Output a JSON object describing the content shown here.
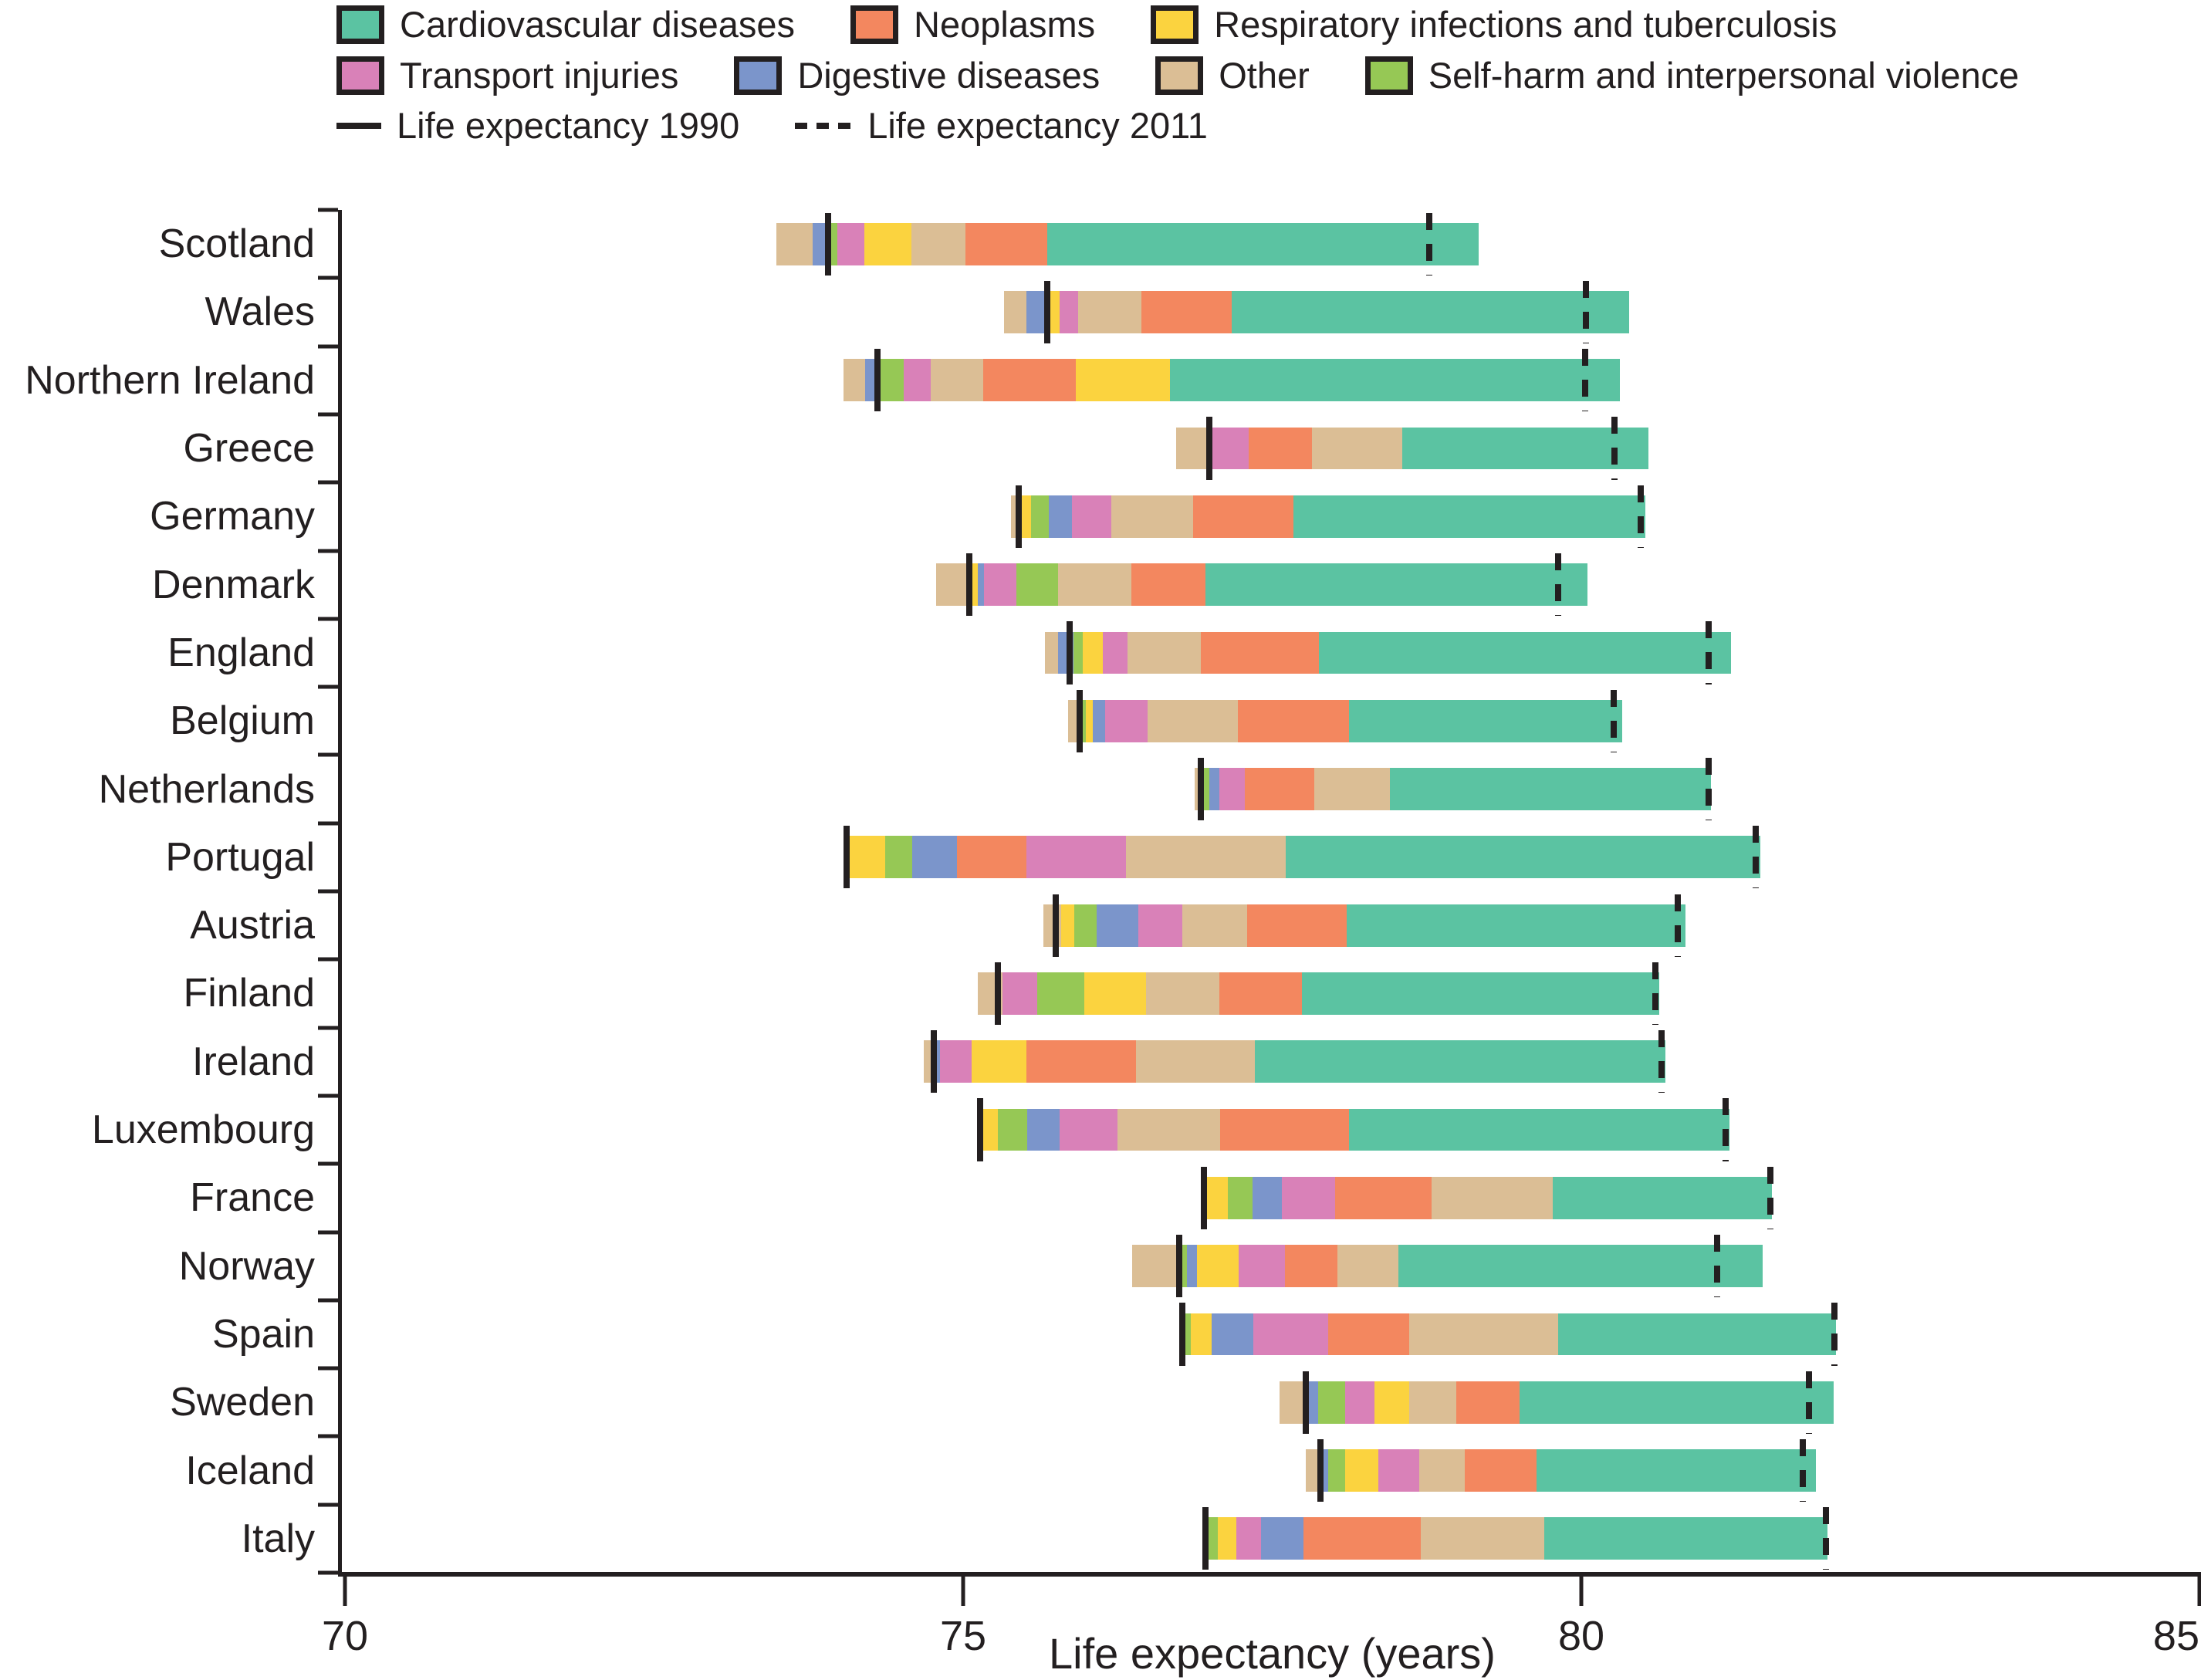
{
  "legend": {
    "categories": [
      {
        "id": "cvd",
        "label": "Cardiovascular diseases",
        "color": "#5BC3A2"
      },
      {
        "id": "neo",
        "label": "Neoplasms",
        "color": "#F3875F"
      },
      {
        "id": "resp",
        "label": "Respiratory infections and tuberculosis",
        "color": "#FBD33F"
      },
      {
        "id": "trans",
        "label": "Transport injuries",
        "color": "#D981B8"
      },
      {
        "id": "dig",
        "label": "Digestive diseases",
        "color": "#7B95CB"
      },
      {
        "id": "other",
        "label": "Other",
        "color": "#DBBE95"
      },
      {
        "id": "self",
        "label": "Self-harm and interpersonal violence",
        "color": "#96C855"
      }
    ],
    "swatch_rows": [
      [
        "cvd",
        "neo",
        "resp"
      ],
      [
        "trans",
        "dig",
        "other",
        "self"
      ]
    ],
    "lines": [
      {
        "id": "le1990",
        "label": "Life expectancy 1990",
        "style": "solid"
      },
      {
        "id": "le2011",
        "label": "Life expectancy 2011",
        "style": "dashed"
      }
    ]
  },
  "axis": {
    "min": 70,
    "max": 85,
    "ticks": [
      70,
      75,
      80,
      85
    ],
    "label": "Life expectancy (years)"
  },
  "colors": {
    "ink": "#231F20",
    "background": "#FFFFFF"
  },
  "chart_data": {
    "type": "bar",
    "orientation": "horizontal-stacked",
    "title": "",
    "xlabel": "Life expectancy (years)",
    "x_min": 70,
    "x_max": 85,
    "grid": false,
    "legend_position": "top",
    "note": "Each bar decomposes the change in life expectancy 1990-2011 by cause; segments are [cause_id, start_value, end_value] in years; solid marker = life expectancy 1990, dashed marker = life expectancy 2011",
    "categories": [
      "Scotland",
      "Wales",
      "Northern Ireland",
      "Greece",
      "Germany",
      "Denmark",
      "England",
      "Belgium",
      "Netherlands",
      "Portugal",
      "Austria",
      "Finland",
      "Ireland",
      "Luxembourg",
      "France",
      "Norway",
      "Spain",
      "Sweden",
      "Iceland",
      "Italy"
    ],
    "rows": [
      {
        "country": "Scotland",
        "le_1990": 73.91,
        "le_2011": 78.77,
        "segments": [
          [
            "other",
            73.49,
            73.78
          ],
          [
            "dig",
            73.78,
            73.93
          ],
          [
            "self",
            73.93,
            73.98
          ],
          [
            "trans",
            73.98,
            74.2
          ],
          [
            "resp",
            74.2,
            74.58
          ],
          [
            "other",
            74.58,
            75.02
          ],
          [
            "neo",
            75.02,
            75.68
          ],
          [
            "cvd",
            75.68,
            79.17
          ]
        ]
      },
      {
        "country": "Wales",
        "le_1990": 75.68,
        "le_2011": 80.04,
        "segments": [
          [
            "other",
            75.33,
            75.51
          ],
          [
            "dig",
            75.51,
            75.66
          ],
          [
            "resp",
            75.66,
            75.78
          ],
          [
            "trans",
            75.78,
            75.93
          ],
          [
            "other",
            75.93,
            76.44
          ],
          [
            "neo",
            76.44,
            77.17
          ],
          [
            "cvd",
            77.17,
            80.39
          ]
        ]
      },
      {
        "country": "Northern Ireland",
        "le_1990": 74.31,
        "le_2011": 80.03,
        "segments": [
          [
            "other",
            74.03,
            74.21
          ],
          [
            "dig",
            74.21,
            74.33
          ],
          [
            "self",
            74.33,
            74.52
          ],
          [
            "trans",
            74.52,
            74.74
          ],
          [
            "other",
            74.74,
            75.16
          ],
          [
            "neo",
            75.16,
            75.91
          ],
          [
            "resp",
            75.91,
            76.67
          ],
          [
            "cvd",
            76.67,
            80.31
          ]
        ]
      },
      {
        "country": "Greece",
        "le_1990": 76.99,
        "le_2011": 80.27,
        "segments": [
          [
            "other",
            76.72,
            77.01
          ],
          [
            "trans",
            77.01,
            77.31
          ],
          [
            "neo",
            77.31,
            77.82
          ],
          [
            "other",
            77.82,
            78.55
          ],
          [
            "cvd",
            78.55,
            80.54
          ]
        ]
      },
      {
        "country": "Germany",
        "le_1990": 75.45,
        "le_2011": 80.48,
        "segments": [
          [
            "other",
            75.39,
            75.47
          ],
          [
            "resp",
            75.47,
            75.55
          ],
          [
            "self",
            75.55,
            75.69
          ],
          [
            "dig",
            75.69,
            75.88
          ],
          [
            "trans",
            75.88,
            76.2
          ],
          [
            "other",
            76.2,
            76.86
          ],
          [
            "neo",
            76.86,
            77.67
          ],
          [
            "cvd",
            77.67,
            80.52
          ]
        ]
      },
      {
        "country": "Denmark",
        "le_1990": 75.05,
        "le_2011": 79.81,
        "segments": [
          [
            "other",
            74.78,
            75.05
          ],
          [
            "resp",
            75.05,
            75.12
          ],
          [
            "dig",
            75.12,
            75.17
          ],
          [
            "trans",
            75.17,
            75.43
          ],
          [
            "self",
            75.43,
            75.77
          ],
          [
            "other",
            75.77,
            76.36
          ],
          [
            "neo",
            76.36,
            76.96
          ],
          [
            "cvd",
            76.96,
            80.05
          ]
        ]
      },
      {
        "country": "England",
        "le_1990": 75.86,
        "le_2011": 81.03,
        "segments": [
          [
            "other",
            75.66,
            75.77
          ],
          [
            "dig",
            75.77,
            75.89
          ],
          [
            "self",
            75.89,
            75.97
          ],
          [
            "resp",
            75.97,
            76.13
          ],
          [
            "trans",
            76.13,
            76.33
          ],
          [
            "other",
            76.33,
            76.92
          ],
          [
            "neo",
            76.92,
            77.88
          ],
          [
            "cvd",
            77.88,
            81.21
          ]
        ]
      },
      {
        "country": "Belgium",
        "le_1990": 75.94,
        "le_2011": 80.26,
        "segments": [
          [
            "other",
            75.85,
            75.95
          ],
          [
            "self",
            75.95,
            75.99
          ],
          [
            "resp",
            75.99,
            76.05
          ],
          [
            "dig",
            76.05,
            76.15
          ],
          [
            "trans",
            76.15,
            76.49
          ],
          [
            "other",
            76.49,
            77.22
          ],
          [
            "neo",
            77.22,
            78.12
          ],
          [
            "cvd",
            78.12,
            80.33
          ]
        ]
      },
      {
        "country": "Netherlands",
        "le_1990": 76.92,
        "le_2011": 81.03,
        "segments": [
          [
            "other",
            76.87,
            76.92
          ],
          [
            "self",
            76.92,
            76.99
          ],
          [
            "dig",
            76.99,
            77.07
          ],
          [
            "trans",
            77.07,
            77.28
          ],
          [
            "neo",
            77.28,
            77.84
          ],
          [
            "other",
            77.84,
            78.45
          ],
          [
            "cvd",
            78.45,
            81.05
          ]
        ]
      },
      {
        "country": "Portugal",
        "le_1990": 74.06,
        "le_2011": 81.41,
        "segments": [
          [
            "resp",
            74.06,
            74.37
          ],
          [
            "self",
            74.37,
            74.59
          ],
          [
            "dig",
            74.59,
            74.95
          ],
          [
            "neo",
            74.95,
            75.51
          ],
          [
            "trans",
            75.51,
            76.32
          ],
          [
            "other",
            76.32,
            77.61
          ],
          [
            "cvd",
            77.61,
            81.45
          ]
        ]
      },
      {
        "country": "Austria",
        "le_1990": 75.75,
        "le_2011": 80.78,
        "segments": [
          [
            "other",
            75.65,
            75.79
          ],
          [
            "resp",
            75.79,
            75.9
          ],
          [
            "self",
            75.9,
            76.08
          ],
          [
            "dig",
            76.08,
            76.42
          ],
          [
            "trans",
            76.42,
            76.77
          ],
          [
            "other",
            76.77,
            77.3
          ],
          [
            "neo",
            77.3,
            78.1
          ],
          [
            "cvd",
            78.1,
            80.84
          ]
        ]
      },
      {
        "country": "Finland",
        "le_1990": 75.28,
        "le_2011": 80.6,
        "segments": [
          [
            "other",
            75.12,
            75.32
          ],
          [
            "trans",
            75.32,
            75.6
          ],
          [
            "self",
            75.6,
            75.98
          ],
          [
            "resp",
            75.98,
            76.48
          ],
          [
            "other",
            76.48,
            77.07
          ],
          [
            "neo",
            77.07,
            77.74
          ],
          [
            "cvd",
            77.74,
            80.63
          ]
        ]
      },
      {
        "country": "Ireland",
        "le_1990": 74.76,
        "le_2011": 80.65,
        "segments": [
          [
            "other",
            74.68,
            74.76
          ],
          [
            "dig",
            74.76,
            74.81
          ],
          [
            "trans",
            74.81,
            75.07
          ],
          [
            "resp",
            75.07,
            75.51
          ],
          [
            "neo",
            75.51,
            76.4
          ],
          [
            "other",
            76.4,
            77.36
          ],
          [
            "cvd",
            77.36,
            80.68
          ]
        ]
      },
      {
        "country": "Luxembourg",
        "le_1990": 75.14,
        "le_2011": 81.17,
        "segments": [
          [
            "resp",
            75.15,
            75.28
          ],
          [
            "self",
            75.28,
            75.52
          ],
          [
            "dig",
            75.52,
            75.78
          ],
          [
            "trans",
            75.78,
            76.25
          ],
          [
            "other",
            76.25,
            77.08
          ],
          [
            "neo",
            77.08,
            78.12
          ],
          [
            "cvd",
            78.12,
            81.2
          ]
        ]
      },
      {
        "country": "France",
        "le_1990": 76.95,
        "le_2011": 81.53,
        "segments": [
          [
            "resp",
            76.95,
            77.14
          ],
          [
            "self",
            77.14,
            77.34
          ],
          [
            "dig",
            77.34,
            77.58
          ],
          [
            "trans",
            77.58,
            78.01
          ],
          [
            "neo",
            78.01,
            78.79
          ],
          [
            "other",
            78.79,
            79.77
          ],
          [
            "cvd",
            79.77,
            81.54
          ]
        ]
      },
      {
        "country": "Norway",
        "le_1990": 76.75,
        "le_2011": 81.1,
        "segments": [
          [
            "other",
            76.37,
            76.76
          ],
          [
            "self",
            76.76,
            76.81
          ],
          [
            "dig",
            76.81,
            76.89
          ],
          [
            "resp",
            76.89,
            77.23
          ],
          [
            "trans",
            77.23,
            77.6
          ],
          [
            "neo",
            77.6,
            78.03
          ],
          [
            "other",
            78.03,
            78.52
          ],
          [
            "cvd",
            78.52,
            81.47
          ]
        ]
      },
      {
        "country": "Spain",
        "le_1990": 76.77,
        "le_2011": 82.05,
        "segments": [
          [
            "self",
            76.77,
            76.84
          ],
          [
            "resp",
            76.84,
            77.01
          ],
          [
            "dig",
            77.01,
            77.35
          ],
          [
            "trans",
            77.35,
            77.95
          ],
          [
            "neo",
            77.95,
            78.61
          ],
          [
            "other",
            78.61,
            79.81
          ],
          [
            "cvd",
            79.81,
            82.06
          ]
        ]
      },
      {
        "country": "Sweden",
        "le_1990": 77.77,
        "le_2011": 81.84,
        "segments": [
          [
            "other",
            77.56,
            77.78
          ],
          [
            "dig",
            77.78,
            77.87
          ],
          [
            "self",
            77.87,
            78.09
          ],
          [
            "trans",
            78.09,
            78.33
          ],
          [
            "resp",
            78.33,
            78.61
          ],
          [
            "other",
            78.61,
            78.99
          ],
          [
            "neo",
            78.99,
            79.5
          ],
          [
            "cvd",
            79.5,
            82.04
          ]
        ]
      },
      {
        "country": "Iceland",
        "le_1990": 77.89,
        "le_2011": 81.79,
        "segments": [
          [
            "other",
            77.77,
            77.9
          ],
          [
            "dig",
            77.9,
            77.95
          ],
          [
            "self",
            77.95,
            78.09
          ],
          [
            "resp",
            78.09,
            78.36
          ],
          [
            "trans",
            78.36,
            78.69
          ],
          [
            "other",
            78.69,
            79.06
          ],
          [
            "neo",
            79.06,
            79.64
          ],
          [
            "cvd",
            79.64,
            81.9
          ]
        ]
      },
      {
        "country": "Italy",
        "le_1990": 76.96,
        "le_2011": 81.98,
        "segments": [
          [
            "self",
            76.97,
            77.06
          ],
          [
            "resp",
            77.06,
            77.21
          ],
          [
            "trans",
            77.21,
            77.41
          ],
          [
            "dig",
            77.41,
            77.75
          ],
          [
            "neo",
            77.75,
            78.7
          ],
          [
            "other",
            78.7,
            79.7
          ],
          [
            "cvd",
            79.7,
            81.99
          ]
        ]
      }
    ]
  }
}
